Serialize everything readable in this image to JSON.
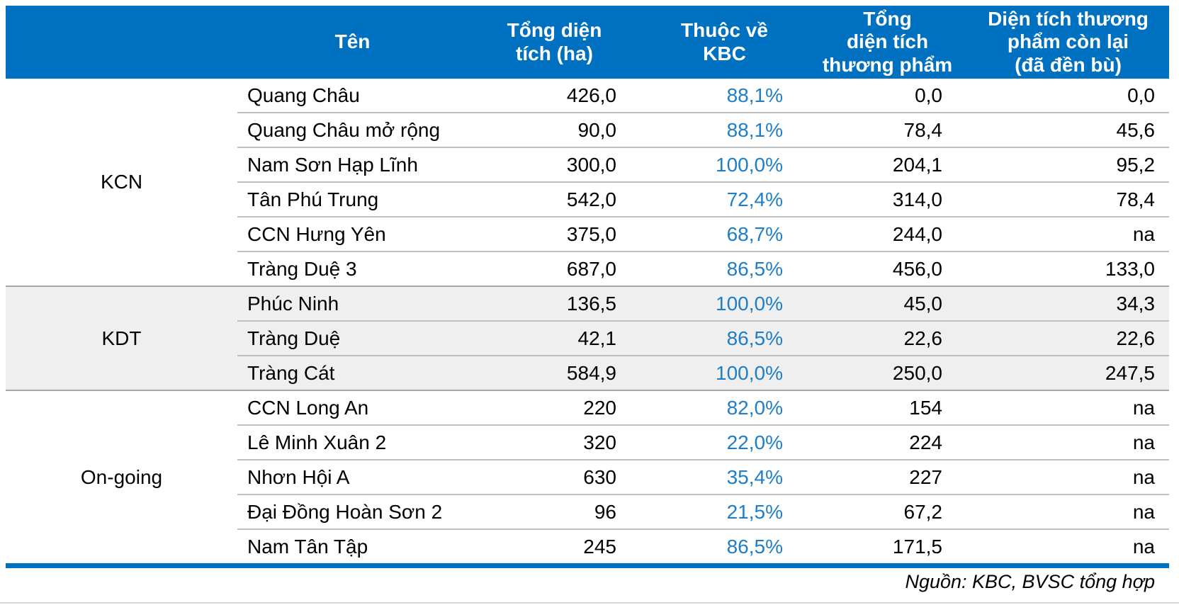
{
  "table": {
    "headers": {
      "name": "Tên",
      "total_area": "Tổng diện\ntích (ha)",
      "kbc_share": "Thuộc về\nKBC",
      "commercial_area": "Tổng\ndiện tích\nthương phẩm",
      "remaining_area": "Diện tích thương\nphẩm còn lại\n(đã đền bù)"
    },
    "groups": [
      {
        "id": "kcn",
        "label": "KCN",
        "shaded": false,
        "rows": [
          {
            "name": "Quang Châu",
            "total_area": "426,0",
            "kbc_pct": "88,1%",
            "commercial": "0,0",
            "remaining": "0,0"
          },
          {
            "name": "Quang Châu mở rộng",
            "total_area": "90,0",
            "kbc_pct": "88,1%",
            "commercial": "78,4",
            "remaining": "45,6"
          },
          {
            "name": "Nam Sơn Hạp Lĩnh",
            "total_area": "300,0",
            "kbc_pct": "100,0%",
            "commercial": "204,1",
            "remaining": "95,2"
          },
          {
            "name": "Tân Phú Trung",
            "total_area": "542,0",
            "kbc_pct": "72,4%",
            "commercial": "314,0",
            "remaining": "78,4"
          },
          {
            "name": "CCN Hưng Yên",
            "total_area": "375,0",
            "kbc_pct": "68,7%",
            "commercial": "244,0",
            "remaining": "na"
          },
          {
            "name": "Tràng Duệ 3",
            "total_area": "687,0",
            "kbc_pct": "86,5%",
            "commercial": "456,0",
            "remaining": "133,0"
          }
        ]
      },
      {
        "id": "kdt",
        "label": "KDT",
        "shaded": true,
        "rows": [
          {
            "name": "Phúc Ninh",
            "total_area": "136,5",
            "kbc_pct": "100,0%",
            "commercial": "45,0",
            "remaining": "34,3"
          },
          {
            "name": "Tràng Duệ",
            "total_area": "42,1",
            "kbc_pct": "86,5%",
            "commercial": "22,6",
            "remaining": "22,6"
          },
          {
            "name": "Tràng Cát",
            "total_area": "584,9",
            "kbc_pct": "100,0%",
            "commercial": "250,0",
            "remaining": "247,5"
          }
        ]
      },
      {
        "id": "ongoing",
        "label": "On-going",
        "shaded": false,
        "rows": [
          {
            "name": "CCN Long An",
            "total_area": "220",
            "kbc_pct": "82,0%",
            "commercial": "154",
            "remaining": "na"
          },
          {
            "name": "Lê Minh Xuân 2",
            "total_area": "320",
            "kbc_pct": "22,0%",
            "commercial": "224",
            "remaining": "na"
          },
          {
            "name": "Nhơn Hội A",
            "total_area": "630",
            "kbc_pct": "35,4%",
            "commercial": "227",
            "remaining": "na"
          },
          {
            "name": "Đại Đồng Hoàn Sơn 2",
            "total_area": "96",
            "kbc_pct": "21,5%",
            "commercial": "67,2",
            "remaining": "na"
          },
          {
            "name": "Nam Tân Tập",
            "total_area": "245",
            "kbc_pct": "86,5%",
            "commercial": "171,5",
            "remaining": "na"
          }
        ]
      }
    ]
  },
  "footer": {
    "source": "Nguồn: KBC, BVSC tổng hợp"
  },
  "colors": {
    "header_bg": "#0070C0",
    "header_text": "#FFFFFF",
    "percent_text": "#1F7EC7",
    "shaded_group_bg": "#EFEFEF",
    "row_divider": "#BFBFBF",
    "group_divider": "#A6A6A6",
    "bottom_bar": "#0070C0"
  }
}
